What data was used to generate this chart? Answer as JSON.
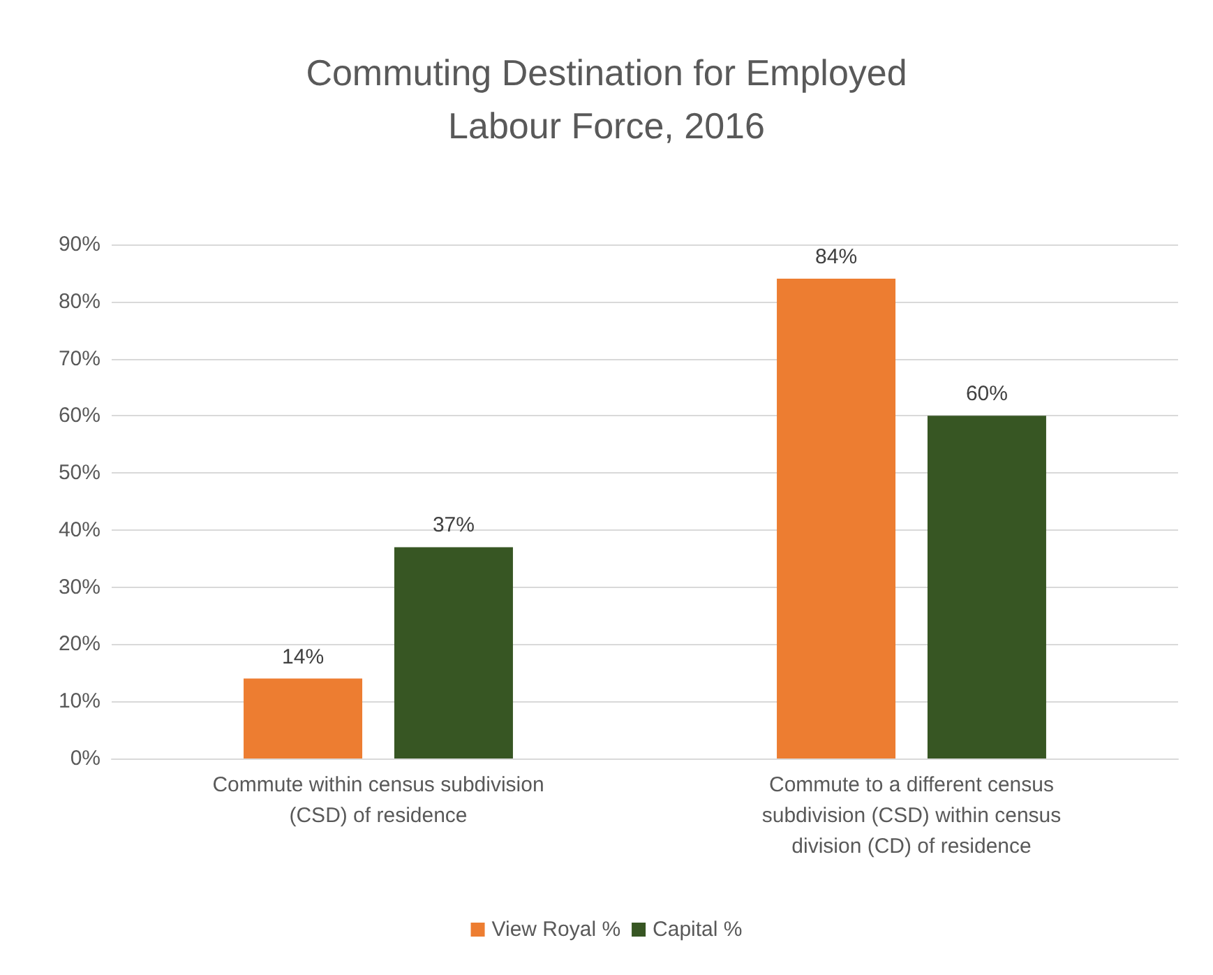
{
  "chart_data": {
    "type": "bar",
    "title": "Commuting Destination for Employed Labour Force, 2016",
    "categories": [
      "Commute within census subdivision (CSD) of residence",
      "Commute to a different census subdivision (CSD) within census division (CD) of residence"
    ],
    "series": [
      {
        "name": "View Royal %",
        "color": "#ed7d31",
        "values": [
          14,
          84
        ],
        "value_labels": [
          "14%",
          "84%"
        ]
      },
      {
        "name": "Capital %",
        "color": "#375623",
        "values": [
          37,
          60
        ],
        "value_labels": [
          "37%",
          "60%"
        ]
      }
    ],
    "ylim": [
      0,
      90
    ],
    "yticks": [
      {
        "value": 0,
        "label": "0%"
      },
      {
        "value": 10,
        "label": "10%"
      },
      {
        "value": 20,
        "label": "20%"
      },
      {
        "value": 30,
        "label": "30%"
      },
      {
        "value": 40,
        "label": "40%"
      },
      {
        "value": 50,
        "label": "50%"
      },
      {
        "value": 60,
        "label": "60%"
      },
      {
        "value": 70,
        "label": "70%"
      },
      {
        "value": 80,
        "label": "80%"
      },
      {
        "value": 90,
        "label": "90%"
      }
    ],
    "grid": "y",
    "legend": "bottom"
  }
}
